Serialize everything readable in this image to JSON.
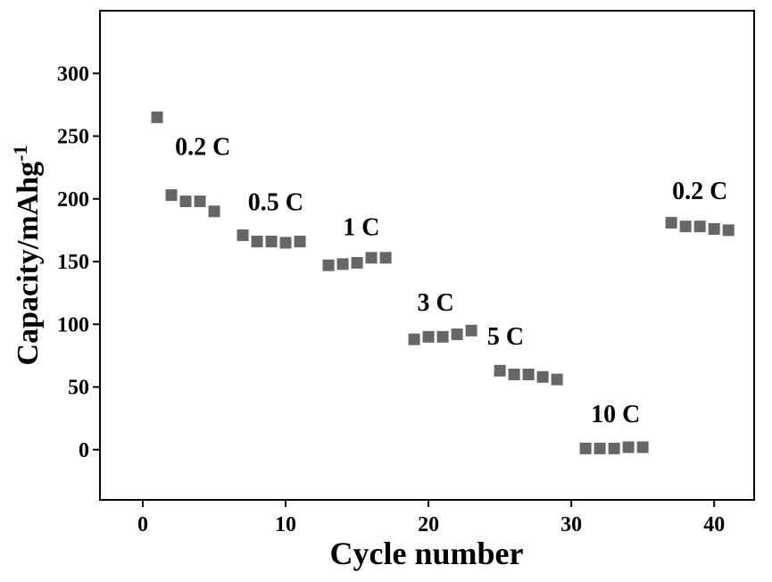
{
  "chart_data": {
    "type": "scatter",
    "title": "",
    "xlabel": "Cycle number",
    "ylabel": "Capacity/mAhg",
    "ylabel_superscript": "-1",
    "xlim": [
      -3,
      42.8
    ],
    "ylim": [
      -40,
      350
    ],
    "xticks": [
      0,
      10,
      20,
      30,
      40
    ],
    "yticks": [
      0,
      50,
      100,
      150,
      200,
      250,
      300
    ],
    "grid": false,
    "marker": "square",
    "marker_color": "#666666",
    "series": [
      {
        "x": [
          1,
          2,
          3,
          4,
          5,
          7,
          8,
          9,
          10,
          11,
          13,
          14,
          15,
          16,
          17,
          19,
          20,
          21,
          22,
          23,
          25,
          26,
          27,
          28,
          29,
          31,
          32,
          33,
          34,
          35,
          37,
          38,
          39,
          40,
          41
        ],
        "y": [
          265,
          203,
          198,
          198,
          190,
          171,
          166,
          166,
          165,
          166,
          147,
          148,
          149,
          153,
          153,
          88,
          90,
          90,
          92,
          95,
          63,
          60,
          60,
          58,
          56,
          1,
          1,
          1,
          2,
          2,
          181,
          178,
          178,
          176,
          175
        ]
      }
    ],
    "annotations": [
      {
        "text": "0.2 C",
        "x": 4.2,
        "y": 235
      },
      {
        "text": "0.5 C",
        "x": 9.3,
        "y": 191
      },
      {
        "text": "1 C",
        "x": 15.3,
        "y": 171
      },
      {
        "text": "3 C",
        "x": 20.5,
        "y": 111
      },
      {
        "text": "5 C",
        "x": 25.4,
        "y": 84
      },
      {
        "text": "10 C",
        "x": 33.1,
        "y": 22
      },
      {
        "text": "0.2 C",
        "x": 39.0,
        "y": 200
      }
    ]
  }
}
